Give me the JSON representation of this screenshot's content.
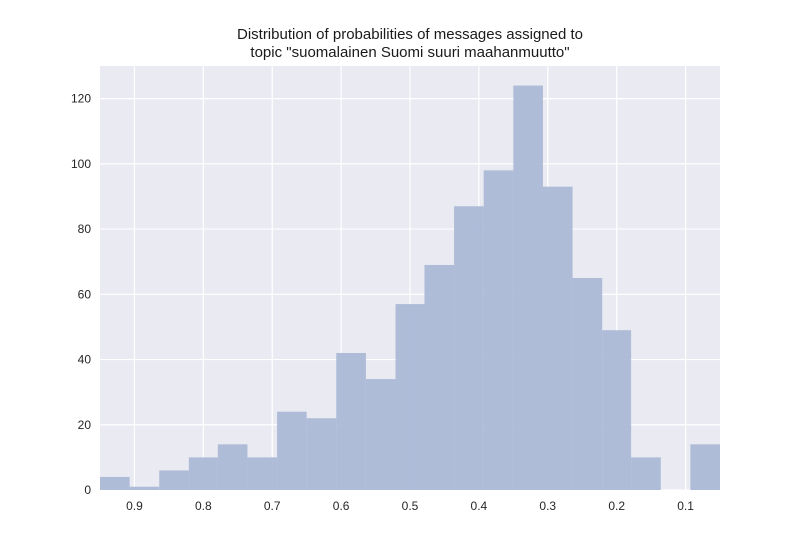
{
  "chart_data": {
    "type": "bar",
    "title_lines": [
      "Distribution of probabilities of messages assigned to",
      "topic \"suomalainen Suomi suuri maahanmuutto\""
    ],
    "xlabel": "",
    "ylabel": "",
    "x_reversed": true,
    "xlim": [
      0.95,
      0.05
    ],
    "ylim": [
      0,
      130
    ],
    "grid": true,
    "x_ticks": [
      0.9,
      0.8,
      0.7,
      0.6,
      0.5,
      0.4,
      0.3,
      0.2,
      0.1
    ],
    "x_tick_labels": [
      "0.9",
      "0.8",
      "0.7",
      "0.6",
      "0.5",
      "0.4",
      "0.3",
      "0.2",
      "0.1"
    ],
    "y_ticks": [
      0,
      20,
      40,
      60,
      80,
      100,
      120
    ],
    "y_tick_labels": [
      "0",
      "20",
      "40",
      "60",
      "80",
      "100",
      "120"
    ],
    "bin_edges": [
      0.95,
      0.907,
      0.864,
      0.821,
      0.779,
      0.736,
      0.693,
      0.65,
      0.607,
      0.564,
      0.521,
      0.479,
      0.436,
      0.393,
      0.35,
      0.307,
      0.264,
      0.221,
      0.179,
      0.136,
      0.093,
      0.05
    ],
    "counts": [
      4,
      1,
      6,
      10,
      14,
      10,
      24,
      22,
      42,
      34,
      57,
      69,
      87,
      98,
      124,
      93,
      65,
      49,
      10,
      0,
      14
    ],
    "bar_color": "#a8b7d6",
    "plot_bg": "#eaeaf2",
    "grid_color": "#ffffff"
  }
}
